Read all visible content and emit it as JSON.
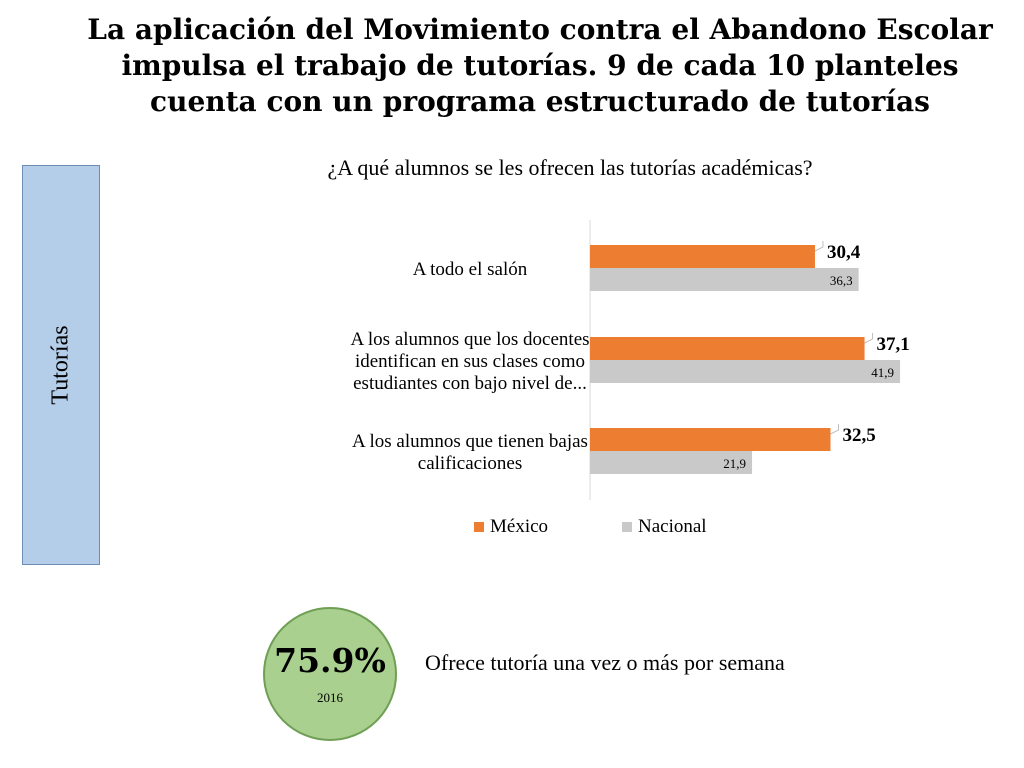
{
  "title": {
    "lines": [
      "La aplicación del Movimiento contra el Abandono Escolar",
      "impulsa el trabajo de tutorías. 9 de cada 10 planteles",
      "cuenta con un programa estructurado de tutorías"
    ]
  },
  "side_tab": {
    "label": "Tutorías"
  },
  "chart_data": {
    "type": "bar",
    "orientation": "horizontal",
    "title": "¿A qué alumnos se les ofrecen las tutorías académicas?",
    "categories": [
      [
        "A todo el salón"
      ],
      [
        "A los alumnos que los docentes",
        "identifican en sus clases como",
        "estudiantes con bajo nivel de..."
      ],
      [
        "A los alumnos que tienen bajas",
        "calificaciones"
      ]
    ],
    "series": [
      {
        "name": "México",
        "color": "#ed7d31",
        "values": [
          30.4,
          37.1,
          32.5
        ],
        "labels": [
          "30,4",
          "37,1",
          "32,5"
        ]
      },
      {
        "name": "Nacional",
        "color": "#c9c9c9",
        "values": [
          36.3,
          41.9,
          21.9
        ],
        "labels": [
          "36,3",
          "41,9",
          "21,9"
        ]
      }
    ],
    "xlim": [
      0,
      50
    ],
    "grid": false,
    "legend_position": "bottom"
  },
  "badge": {
    "value": "75.9%",
    "year": "2016",
    "color": "#a9d08e"
  },
  "badge_caption": "Ofrece tutoría una vez o más por semana"
}
